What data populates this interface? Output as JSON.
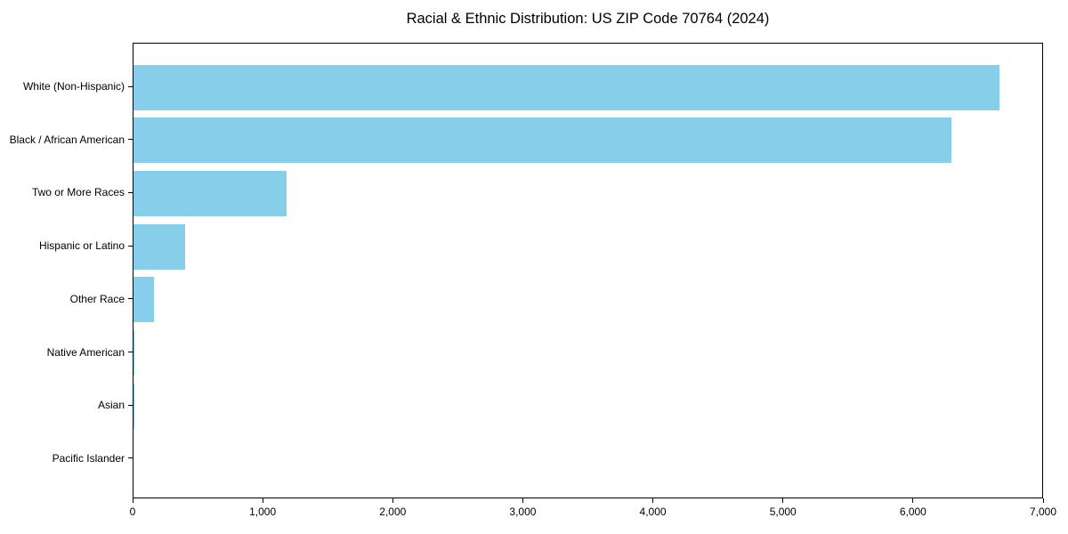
{
  "title": "Racial & Ethnic Distribution: US ZIP Code 70764 (2024)",
  "colors": {
    "bar": "#87CEEB",
    "axis": "#000000",
    "text": "#000000",
    "background": "#ffffff"
  },
  "chart_data": {
    "type": "bar",
    "orientation": "horizontal",
    "title": "Racial & Ethnic Distribution: US ZIP Code 70764 (2024)",
    "xlabel": "",
    "ylabel": "",
    "categories": [
      "White (Non-Hispanic)",
      "Black / African American",
      "Two or More Races",
      "Hispanic or Latino",
      "Other Race",
      "Native American",
      "Asian",
      "Pacific Islander"
    ],
    "values": [
      6670,
      6304,
      1182,
      395,
      155,
      10,
      3,
      0
    ],
    "xlim": [
      0,
      7000
    ],
    "x_ticks": [
      0,
      1000,
      2000,
      3000,
      4000,
      5000,
      6000,
      7000
    ],
    "x_tick_labels": [
      "0",
      "1,000",
      "2,000",
      "3,000",
      "4,000",
      "5,000",
      "6,000",
      "7,000"
    ],
    "grid": false,
    "legend": null,
    "bar_color": "#87CEEB"
  }
}
